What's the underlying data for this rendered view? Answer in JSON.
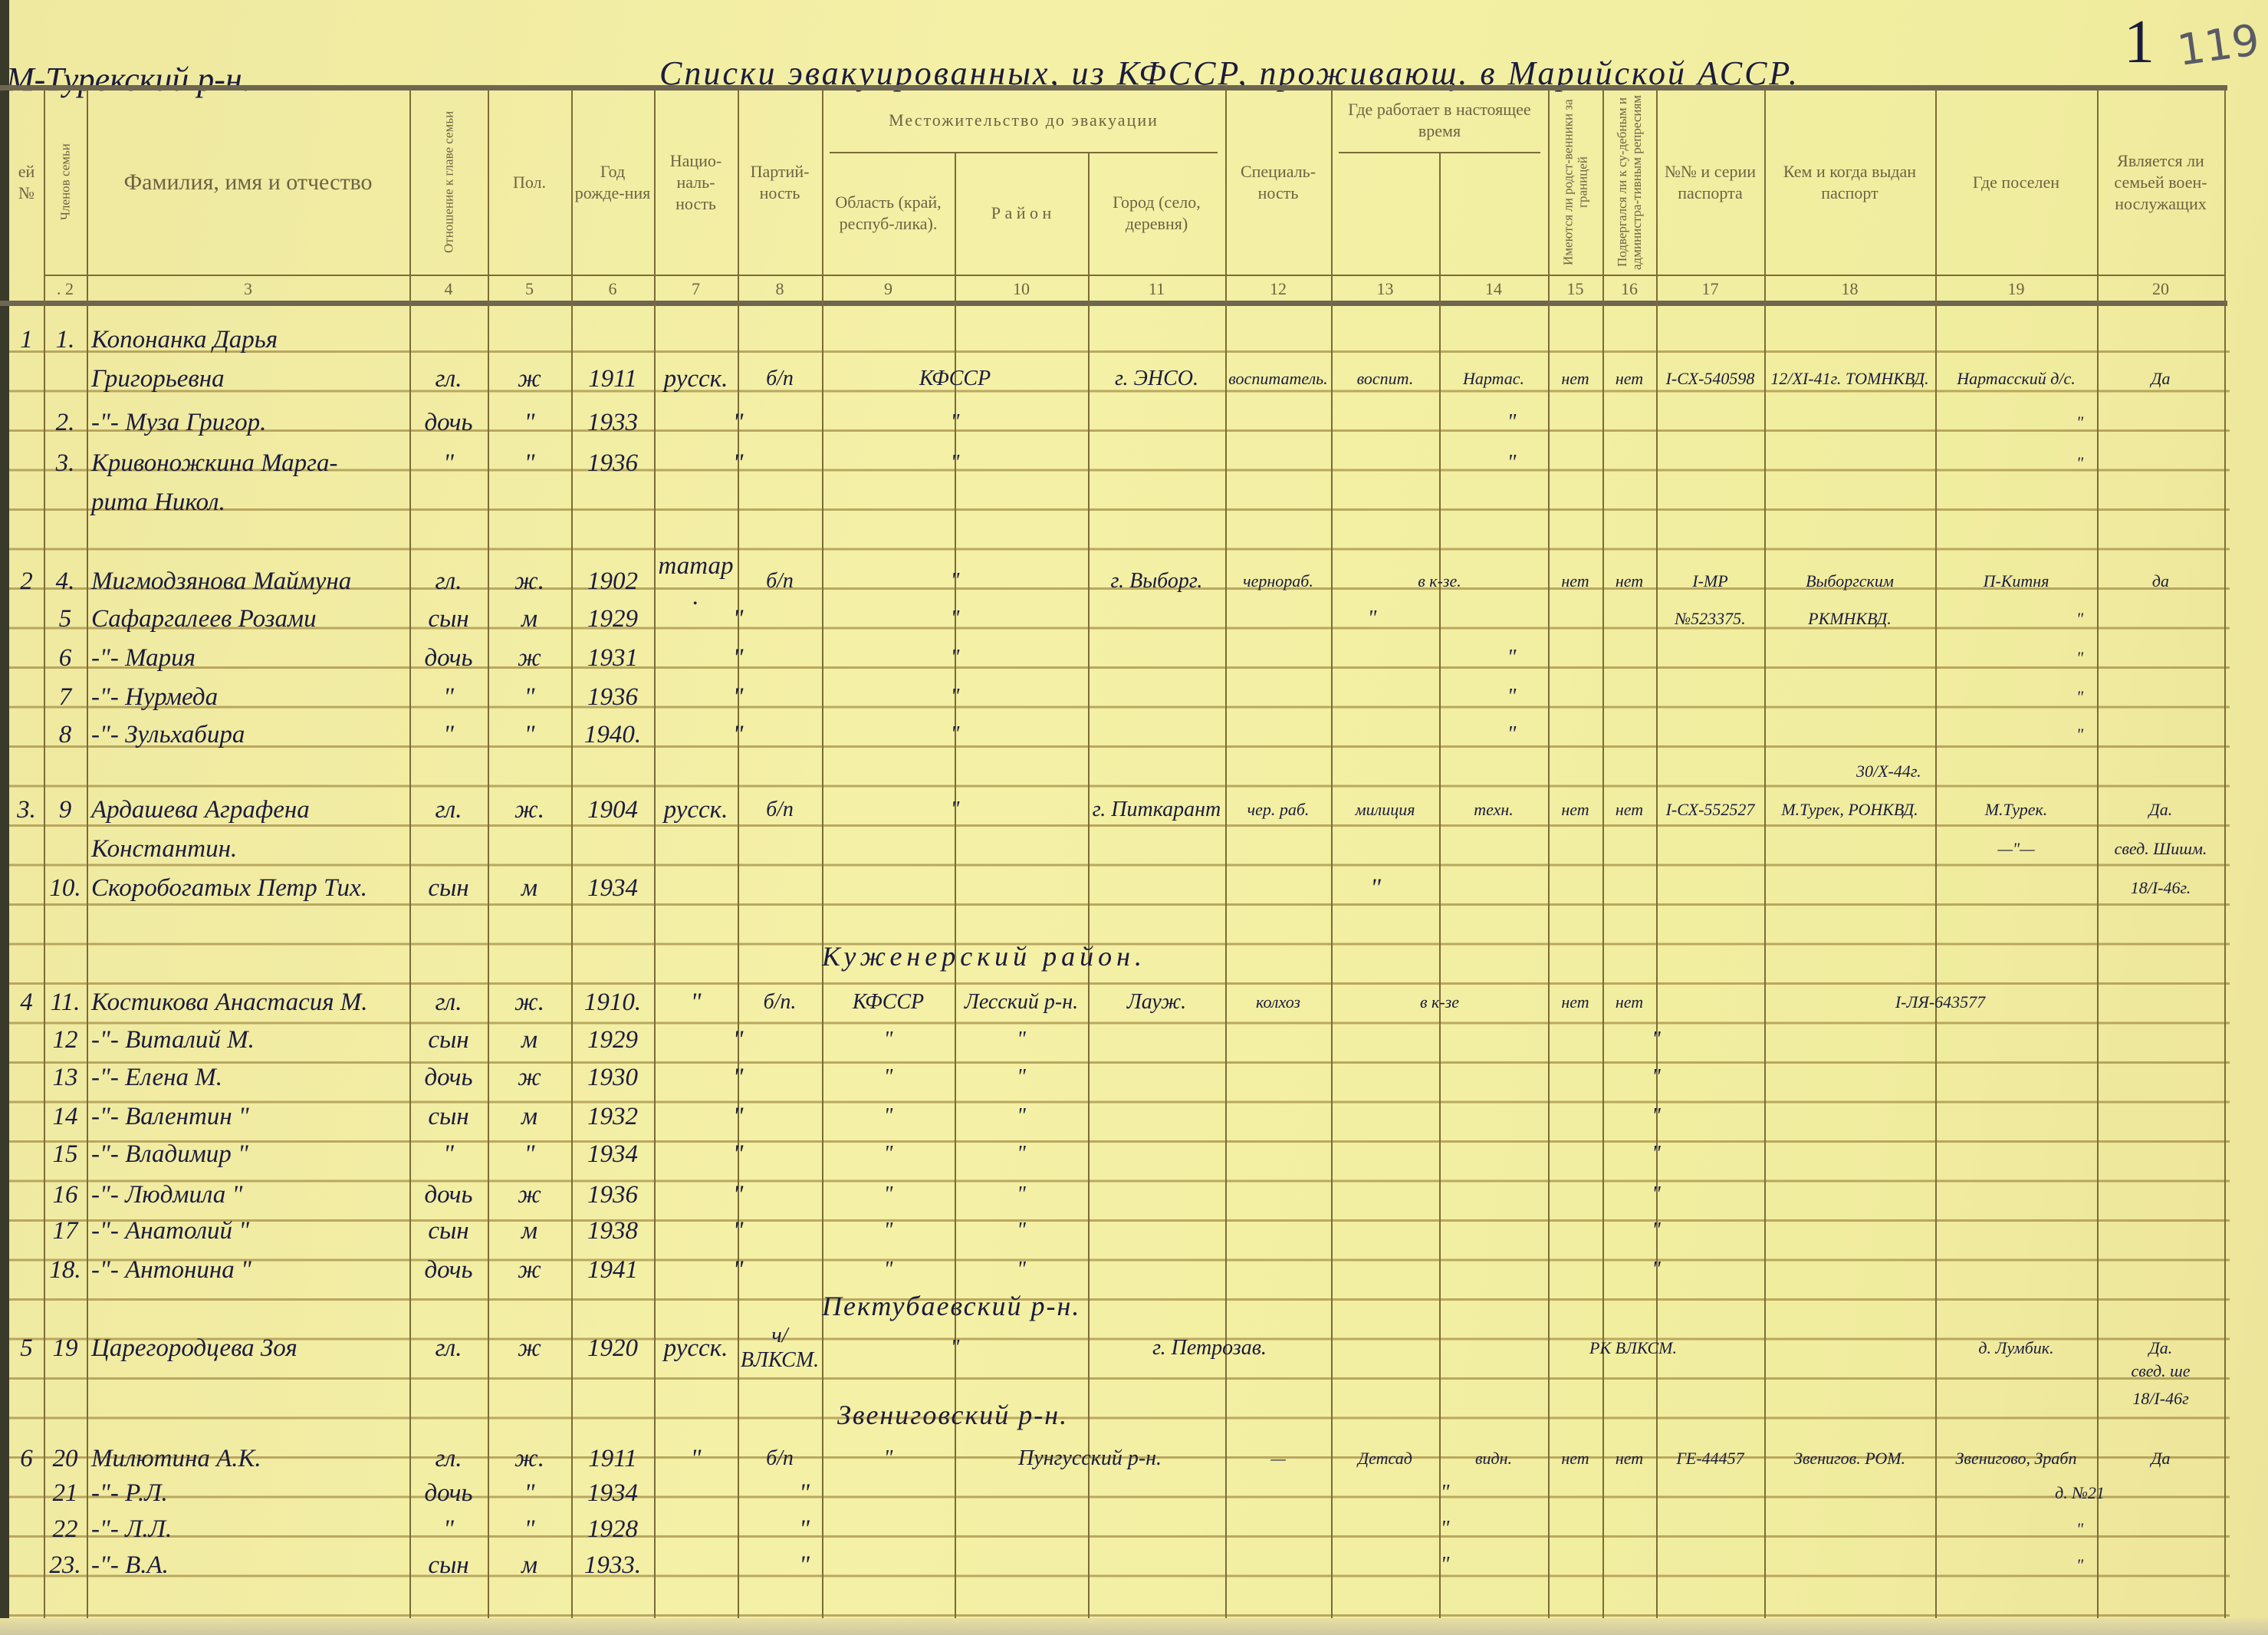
{
  "document": {
    "district_label": "М-Турекский р-н.",
    "title": "Списки эвакуированных, из КФССР, проживающ. в Марийской АССР.",
    "sheet_number": "1",
    "archive_number": "119"
  },
  "header": {
    "group_residence": "Местожительство до эвакуации",
    "group_work": "Где работает в настоящее время",
    "columns": [
      {
        "label": "ей №",
        "number": ""
      },
      {
        "label": "Членов семьи",
        "number": ". 2"
      },
      {
        "label": "Фамилия, имя и отчество",
        "number": "3"
      },
      {
        "label": "Отношение к главе семьи",
        "number": "4"
      },
      {
        "label": "Пол.",
        "number": "5"
      },
      {
        "label": "Год рожде-ния",
        "number": "6"
      },
      {
        "label": "Нацио-наль-ность",
        "number": "7"
      },
      {
        "label": "Партий-ность",
        "number": "8"
      },
      {
        "label": "Область (край, респуб-лика).",
        "number": "9"
      },
      {
        "label": "Р а й о н",
        "number": "10"
      },
      {
        "label": "Город (село, деревня)",
        "number": "11"
      },
      {
        "label": "Специаль-ность",
        "number": "12"
      },
      {
        "label": "",
        "number": "13"
      },
      {
        "label": "",
        "number": "14"
      },
      {
        "label": "Имеются ли родст-венники за границей",
        "number": "15"
      },
      {
        "label": "Подвергался ли к су-дебным и администра-тивным репресиям",
        "number": "16"
      },
      {
        "label": "№№ и серии паспорта",
        "number": "17"
      },
      {
        "label": "Кем и когда выдан паспорт",
        "number": "18"
      },
      {
        "label": "Где поселен",
        "number": "19"
      },
      {
        "label": "Является ли семьей воен-нослужащих",
        "number": "20"
      }
    ]
  },
  "rows": [
    [
      "1",
      "1.",
      "Копонанка Дарья",
      "",
      "",
      "",
      "",
      "",
      "",
      "",
      "",
      "",
      "",
      "",
      "",
      "",
      "",
      "",
      "",
      ""
    ],
    [
      "",
      "",
      "Григорьевна",
      "гл.",
      "ж",
      "1911",
      "русск.",
      "б/п",
      "КФССР",
      "",
      "г. ЭНСО.",
      "воспитатель.",
      "воспит.",
      "Нартас.",
      "нет",
      "нет",
      "I-СХ-540598",
      "12/XI-41г. ТОМНКВД.",
      "Нартасский д/с.",
      "Да"
    ],
    [
      "",
      "2.",
      "-\"- Муза Григор.",
      "дочь",
      "\"",
      "1933",
      "\"",
      "",
      "\"",
      "",
      "\"",
      "",
      "",
      "",
      "",
      "",
      "",
      "",
      "\"",
      ""
    ],
    [
      "",
      "3.",
      "Кривоножкина Марга-",
      "\"",
      "\"",
      "1936",
      "\"",
      "",
      "\"",
      "",
      "\"",
      "",
      "",
      "",
      "",
      "",
      "",
      "",
      "\"",
      ""
    ],
    [
      "",
      "",
      "рита Никол.",
      "",
      "",
      "",
      "",
      "",
      "",
      "",
      "",
      "",
      "",
      "",
      "",
      "",
      "",
      "",
      "",
      ""
    ],
    [
      "2",
      "4.",
      "Мигмодзянова Маймуна",
      "гл.",
      "ж.",
      "1902",
      "татар.",
      "б/п",
      "\"",
      "",
      "г. Выборг.",
      "чернораб.",
      "в к-зе.",
      "",
      "нет",
      "нет",
      "I-МР",
      "Выборгским",
      "П-Китня",
      "да"
    ],
    [
      "",
      "5",
      "Сафаргалеев Розами",
      "сын",
      "м",
      "1929",
      "\"",
      "",
      "\"",
      "",
      "\"",
      "",
      "",
      "",
      "",
      "",
      "№523375.",
      "РКМНКВД.",
      "\"",
      ""
    ],
    [
      "",
      "6",
      "-\"- Мария",
      "дочь",
      "ж",
      "1931",
      "\"",
      "",
      "\"",
      "",
      "\"",
      "",
      "",
      "",
      "",
      "",
      "",
      "",
      "\"",
      ""
    ],
    [
      "",
      "7",
      "-\"- Нурмеда",
      "\"",
      "\"",
      "1936",
      "\"",
      "",
      "\"",
      "",
      "\"",
      "",
      "",
      "",
      "",
      "",
      "",
      "",
      "\"",
      ""
    ],
    [
      "",
      "8",
      "-\"- Зульхабира",
      "\"",
      "\"",
      "1940.",
      "\"",
      "",
      "\"",
      "",
      "\"",
      "",
      "",
      "",
      "",
      "",
      "",
      "",
      "\"",
      ""
    ],
    [
      "3.",
      "9",
      "Ардашева Аграфена",
      "гл.",
      "ж.",
      "1904",
      "русск.",
      "б/п",
      "\"",
      "",
      "г. Питкарант",
      "чер. раб.",
      "милиция",
      "техн.",
      "нет",
      "нет",
      "I-СХ-552527",
      "М.Турек, РОНКВД.",
      "М.Турек.",
      "Да."
    ],
    [
      "",
      "",
      "Константин.",
      "",
      "",
      "",
      "",
      "",
      "",
      "",
      "",
      "",
      "",
      "",
      "",
      "",
      "",
      "",
      "—\"—",
      "свед. Шишм."
    ],
    [
      "",
      "10.",
      "Скоробогатых Петр Тих.",
      "сын",
      "м",
      "1934",
      "\"",
      "",
      "",
      "",
      "",
      "",
      "",
      "",
      "",
      "",
      "",
      "",
      "",
      "18/I-46г."
    ],
    [
      "4",
      "11.",
      "Костикова Анастасия М.",
      "гл.",
      "ж.",
      "1910.",
      "\"",
      "б/п.",
      "КФССР",
      "Лесский р-н.",
      "Лауж.",
      "колхоз",
      "в к-зе",
      "",
      "нет",
      "нет",
      "I-ЛЯ-643577",
      "",
      "",
      ""
    ],
    [
      "",
      "12",
      "-\"- Виталий М.",
      "сын",
      "м",
      "1929",
      "\"",
      "",
      "\"",
      "\"",
      "\"",
      "",
      "",
      "",
      "",
      "",
      "",
      "",
      "",
      ""
    ],
    [
      "",
      "13",
      "-\"- Елена М.",
      "дочь",
      "ж",
      "1930",
      "\"",
      "",
      "\"",
      "\"",
      "\"",
      "",
      "",
      "",
      "",
      "",
      "",
      "",
      "",
      ""
    ],
    [
      "",
      "14",
      "-\"- Валентин \"",
      "сын",
      "м",
      "1932",
      "\"",
      "",
      "\"",
      "\"",
      "\"",
      "",
      "",
      "",
      "",
      "",
      "",
      "",
      "",
      ""
    ],
    [
      "",
      "15",
      "-\"- Владимир \"",
      "\"",
      "\"",
      "1934",
      "\"",
      "",
      "\"",
      "\"",
      "\"",
      "",
      "",
      "",
      "",
      "",
      "",
      "",
      "",
      ""
    ],
    [
      "",
      "16",
      "-\"- Людмила \"",
      "дочь",
      "ж",
      "1936",
      "\"",
      "",
      "\"",
      "\"",
      "\"",
      "",
      "",
      "",
      "",
      "",
      "",
      "",
      "",
      ""
    ],
    [
      "",
      "17",
      "-\"- Анатолий \"",
      "сын",
      "м",
      "1938",
      "\"",
      "",
      "\"",
      "\"",
      "\"",
      "",
      "",
      "",
      "",
      "",
      "",
      "",
      "",
      ""
    ],
    [
      "",
      "18.",
      "-\"- Антонина \"",
      "дочь",
      "ж",
      "1941",
      "\"",
      "",
      "\"",
      "\"",
      "\"",
      "",
      "",
      "",
      "",
      "",
      "",
      "",
      "",
      ""
    ],
    [
      "5",
      "19",
      "Царегородцева Зоя",
      "гл.",
      "ж",
      "1920",
      "русск.",
      "ч/ВЛКСМ.",
      "\"",
      "",
      "г. Петрозав.",
      "",
      "РК ВЛКСМ.",
      "",
      "",
      "",
      "",
      "",
      "д. Лумбик.",
      "Да."
    ],
    [
      "",
      "",
      "",
      "",
      "",
      "",
      "",
      "",
      "",
      "",
      "",
      "",
      "",
      "",
      "",
      "",
      "",
      "",
      "",
      "свед. ше"
    ],
    [
      "",
      "",
      "",
      "",
      "",
      "",
      "",
      "",
      "",
      "",
      "",
      "",
      "",
      "",
      "",
      "",
      "",
      "",
      "",
      "18/I-46г"
    ],
    [
      "6",
      "20",
      "Милютина А.К.",
      "гл.",
      "ж.",
      "1911",
      "\"",
      "б/п",
      "\"",
      "Пунгусский р-н.",
      "",
      "—",
      "Детсад",
      "видн.",
      "нет",
      "нет",
      "ГЕ-44457",
      "Звенигов. РОМ.",
      "Звенигово, Зрабп",
      "Да"
    ],
    [
      "",
      "21",
      "-\"- Р.Л.",
      "дочь",
      "\"",
      "1934",
      "\"",
      "",
      "",
      "\"",
      "",
      "",
      "",
      "",
      "",
      "",
      "",
      "",
      "д. №21",
      ""
    ],
    [
      "",
      "22",
      "-\"- Л.Л.",
      "\"",
      "\"",
      "1928",
      "\"",
      "",
      "",
      "\"",
      "",
      "",
      "",
      "",
      "",
      "",
      "",
      "",
      "\"",
      ""
    ],
    [
      "",
      "23.",
      "-\"- В.А.",
      "сын",
      "м",
      "1933.",
      "\"",
      "",
      "",
      "\"",
      "",
      "",
      "",
      "",
      "",
      "",
      "",
      "",
      "\"",
      ""
    ]
  ],
  "section_headings": [
    "Куженерский район.",
    "Пектубаевский р-н.",
    "Звениговский р-н."
  ],
  "annotations": {
    "passport_date_note": "30/X-44г."
  }
}
